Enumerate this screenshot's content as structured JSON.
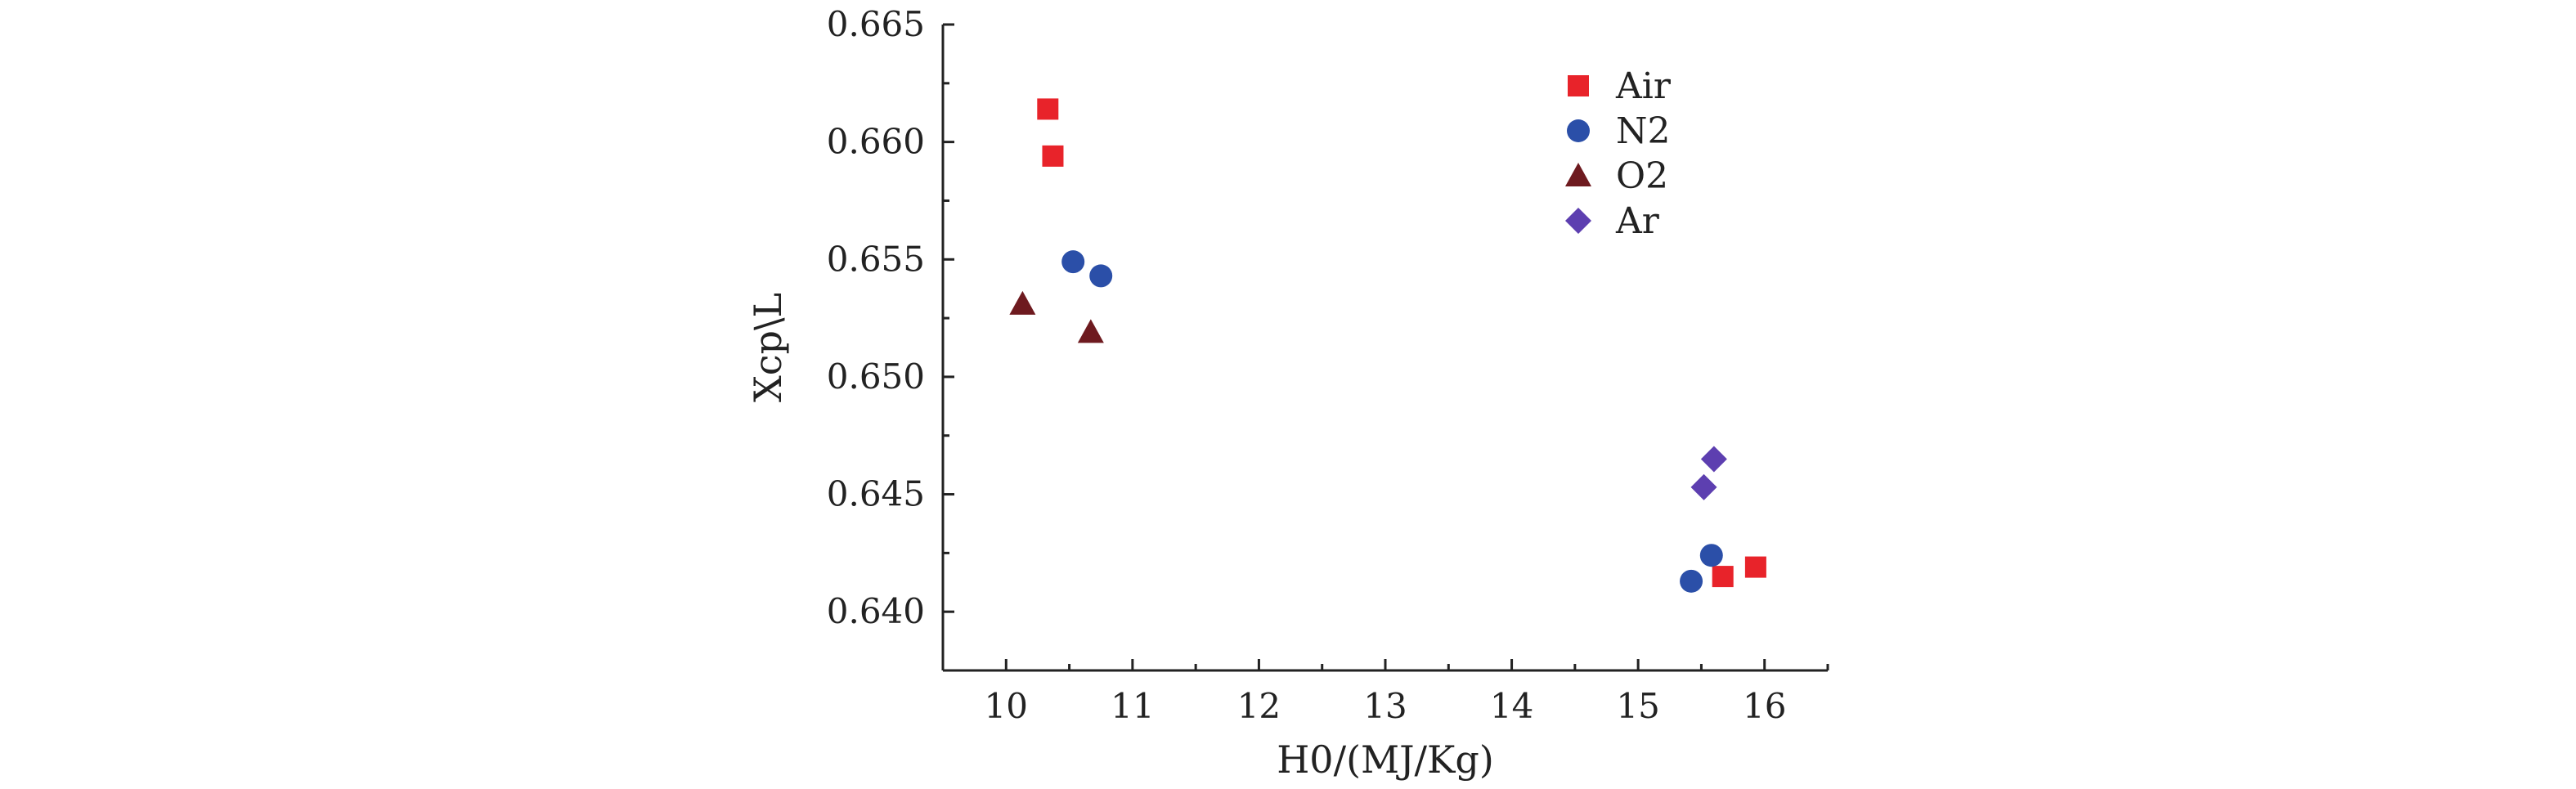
{
  "chart_data": {
    "type": "scatter",
    "title": "",
    "xlabel": "H0/(MJ/Kg)",
    "ylabel": "Xcp\\L",
    "xlim": [
      9.5,
      16.5
    ],
    "ylim": [
      0.6375,
      0.665
    ],
    "x_ticks": [
      10,
      11,
      12,
      13,
      14,
      15,
      16
    ],
    "x_tick_labels": [
      "10",
      "11",
      "12",
      "13",
      "14",
      "15",
      "16"
    ],
    "y_ticks": [
      0.64,
      0.645,
      0.65,
      0.655,
      0.66,
      0.665
    ],
    "y_tick_labels": [
      "0.640",
      "0.645",
      "0.650",
      "0.655",
      "0.660",
      "0.665"
    ],
    "grid": false,
    "legend_position": "top-right",
    "series": [
      {
        "name": "Air",
        "marker": "square",
        "color": "#e8232a",
        "points": [
          [
            10.33,
            0.6614
          ],
          [
            10.37,
            0.6594
          ],
          [
            15.67,
            0.6415
          ],
          [
            15.93,
            0.6419
          ]
        ]
      },
      {
        "name": "N2",
        "marker": "circle",
        "color": "#2b4fa8",
        "points": [
          [
            10.53,
            0.6549
          ],
          [
            10.75,
            0.6543
          ],
          [
            15.42,
            0.6413
          ],
          [
            15.58,
            0.6424
          ]
        ]
      },
      {
        "name": "O2",
        "marker": "triangle",
        "color": "#6e1a1f",
        "points": [
          [
            10.13,
            0.6531
          ],
          [
            10.67,
            0.6519
          ]
        ]
      },
      {
        "name": "Ar",
        "marker": "diamond",
        "color": "#5d3fb0",
        "points": [
          [
            15.52,
            0.6453
          ],
          [
            15.6,
            0.6465
          ]
        ]
      }
    ]
  }
}
